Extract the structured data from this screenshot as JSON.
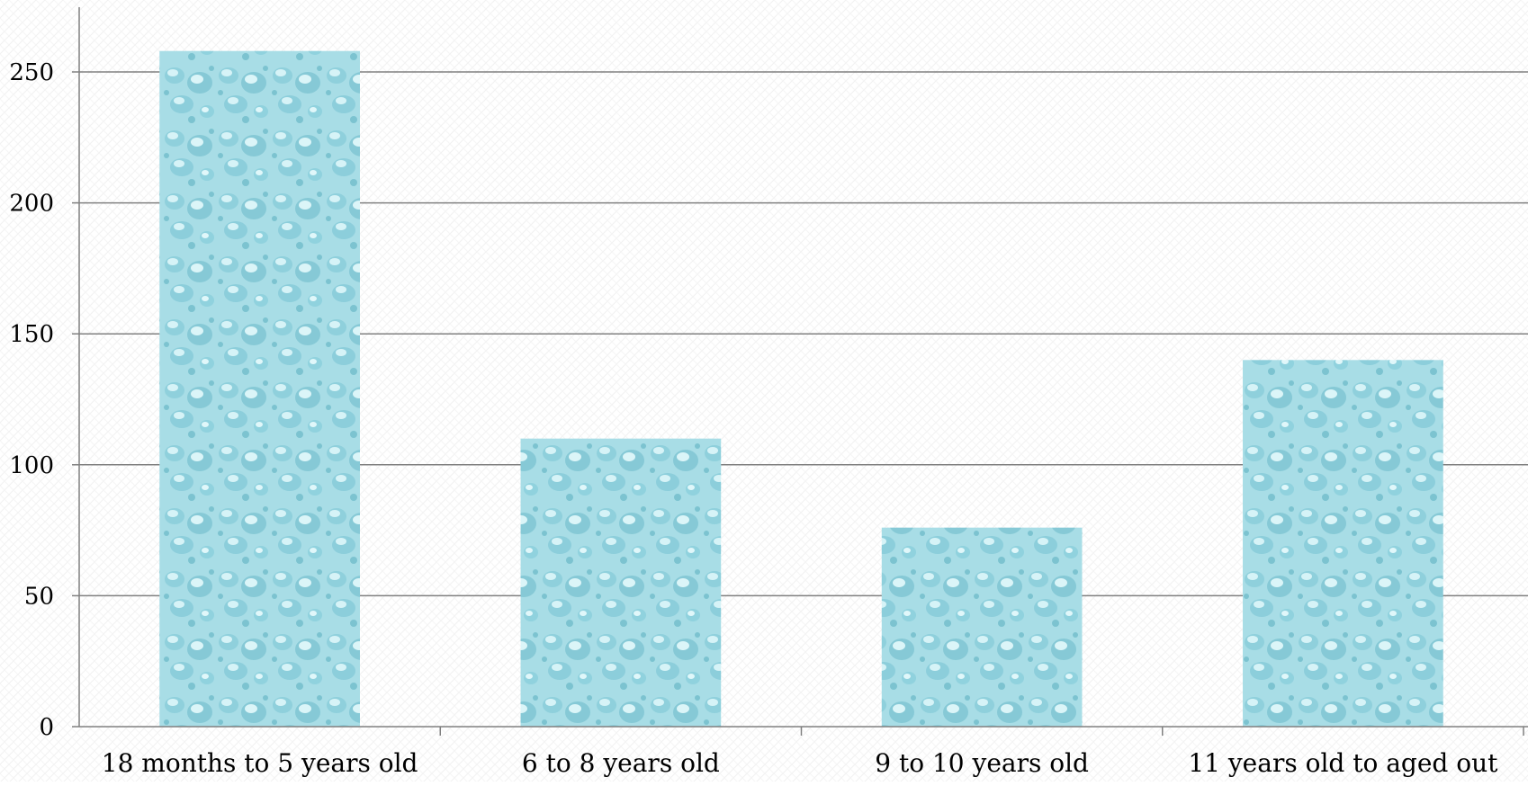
{
  "chart_data": {
    "type": "bar",
    "title": "",
    "xlabel": "",
    "ylabel": "",
    "categories": [
      "18 months to 5 years old",
      "6 to 8 years old",
      "9 to 10 years old",
      "11 years old to aged out"
    ],
    "values": [
      258,
      110,
      76,
      140
    ],
    "ylim": [
      0,
      250
    ],
    "yticks": [
      0,
      50,
      100,
      150,
      200,
      250
    ],
    "ytick_labels": [
      "0",
      "50",
      "100",
      "150",
      "200",
      "250"
    ],
    "grid": true,
    "legend": "none",
    "colors": {
      "bar_fill": "#a8dde6",
      "bar_highlight": "#d6f3f7",
      "bar_shadow": "#7cc3d0",
      "gridline": "#808080",
      "axis": "#808080",
      "background_pattern": "#f1f1f1"
    }
  }
}
